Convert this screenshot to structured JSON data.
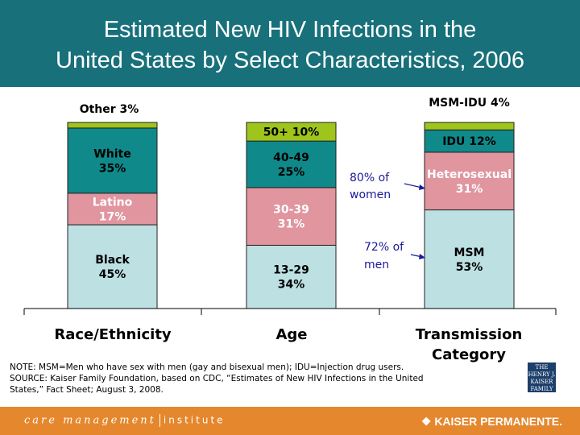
{
  "title_line1": "Estimated New HIV Infections in the",
  "title_line2": "United States by Select Characteristics, 2006",
  "chart_data": {
    "type": "stacked-bar",
    "unit": "%",
    "ylim": [
      0,
      100
    ],
    "categories": [
      "Race/Ethnicity",
      "Age",
      "Transmission Category"
    ],
    "stacks": [
      {
        "category": "Race/Ethnicity",
        "segments": [
          {
            "label": "Black 45%",
            "lines": [
              "Black",
              "45%"
            ],
            "value": 45,
            "color": "#bde0e3"
          },
          {
            "label": "Latino 17%",
            "lines": [
              "Latino",
              "17%"
            ],
            "value": 17,
            "color": "#e0959f"
          },
          {
            "label": "White 35%",
            "lines": [
              "White",
              "35%"
            ],
            "value": 35,
            "color": "#10898a"
          },
          {
            "label": "Other 3%",
            "lines": [
              "Other 3%"
            ],
            "value": 3,
            "color": "#9fc41b",
            "outside": true
          }
        ]
      },
      {
        "category": "Age",
        "segments": [
          {
            "label": "13-29 34%",
            "lines": [
              "13-29",
              "34%"
            ],
            "value": 34,
            "color": "#bde0e3"
          },
          {
            "label": "30-39 31%",
            "lines": [
              "30-39",
              "31%"
            ],
            "value": 31,
            "color": "#e0959f"
          },
          {
            "label": "40-49 25%",
            "lines": [
              "40-49",
              "25%"
            ],
            "value": 25,
            "color": "#10898a"
          },
          {
            "label": "50+ 10%",
            "lines": [
              "50+ 10%"
            ],
            "value": 10,
            "color": "#9fc41b"
          }
        ]
      },
      {
        "category": "Transmission Category",
        "segments": [
          {
            "label": "MSM 53%",
            "lines": [
              "MSM",
              "53%"
            ],
            "value": 53,
            "color": "#bde0e3"
          },
          {
            "label": "Heterosexual 31%",
            "lines": [
              "Heterosexual",
              "31%"
            ],
            "value": 31,
            "color": "#e0959f"
          },
          {
            "label": "IDU 12%",
            "lines": [
              "IDU 12%"
            ],
            "value": 12,
            "color": "#10898a"
          },
          {
            "label": "MSM-IDU 4%",
            "lines": [
              "MSM-IDU 4%"
            ],
            "value": 4,
            "color": "#9fc41b",
            "outside": true
          }
        ]
      }
    ],
    "annotations": [
      {
        "text": [
          "80% of",
          "women"
        ],
        "points_to": "Heterosexual 31%"
      },
      {
        "text": [
          "72% of",
          "men"
        ],
        "points_to": "MSM 53%"
      }
    ]
  },
  "category_labels": {
    "race": "Race/Ethnicity",
    "age": "Age",
    "transmission1": "Transmission",
    "transmission2": "Category"
  },
  "note": "NOTE: MSM=Men who have sex with men (gay and bisexual men); IDU=Injection drug users.",
  "source": "SOURCE: Kaiser Family Foundation, based on CDC, “Estimates of New HIV Infections in the United States,” Fact Sheet; August 3, 2008.",
  "kff_logo": "THE HENRY J. KAISER FAMILY FOUNDATION",
  "footer": {
    "cmi_left": "care management",
    "cmi_right": "institute",
    "kp": "KAISER PERMANENTE."
  }
}
